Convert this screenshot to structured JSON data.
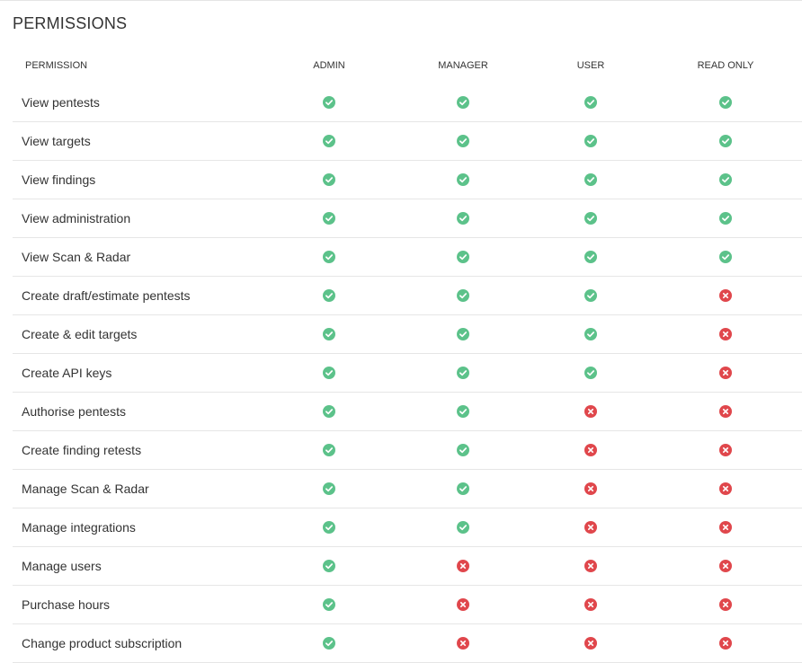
{
  "page": {
    "title": "PERMISSIONS"
  },
  "colors": {
    "allowed": "#5cc28a",
    "denied": "#e0474c"
  },
  "icons": {
    "allowed": "check-circle-icon",
    "denied": "x-circle-icon"
  },
  "table": {
    "headers": {
      "permission": "PERMISSION",
      "admin": "ADMIN",
      "manager": "MANAGER",
      "user": "USER",
      "read_only": "READ ONLY"
    },
    "rows": [
      {
        "label": "View pentests",
        "admin": true,
        "manager": true,
        "user": true,
        "read_only": true
      },
      {
        "label": "View targets",
        "admin": true,
        "manager": true,
        "user": true,
        "read_only": true
      },
      {
        "label": "View findings",
        "admin": true,
        "manager": true,
        "user": true,
        "read_only": true
      },
      {
        "label": "View administration",
        "admin": true,
        "manager": true,
        "user": true,
        "read_only": true
      },
      {
        "label": "View Scan & Radar",
        "admin": true,
        "manager": true,
        "user": true,
        "read_only": true
      },
      {
        "label": "Create draft/estimate pentests",
        "admin": true,
        "manager": true,
        "user": true,
        "read_only": false
      },
      {
        "label": "Create & edit targets",
        "admin": true,
        "manager": true,
        "user": true,
        "read_only": false
      },
      {
        "label": "Create API keys",
        "admin": true,
        "manager": true,
        "user": true,
        "read_only": false
      },
      {
        "label": "Authorise pentests",
        "admin": true,
        "manager": true,
        "user": false,
        "read_only": false
      },
      {
        "label": "Create finding retests",
        "admin": true,
        "manager": true,
        "user": false,
        "read_only": false
      },
      {
        "label": "Manage Scan & Radar",
        "admin": true,
        "manager": true,
        "user": false,
        "read_only": false
      },
      {
        "label": "Manage integrations",
        "admin": true,
        "manager": true,
        "user": false,
        "read_only": false
      },
      {
        "label": "Manage users",
        "admin": true,
        "manager": false,
        "user": false,
        "read_only": false
      },
      {
        "label": "Purchase hours",
        "admin": true,
        "manager": false,
        "user": false,
        "read_only": false
      },
      {
        "label": "Change product subscription",
        "admin": true,
        "manager": false,
        "user": false,
        "read_only": false
      }
    ]
  }
}
